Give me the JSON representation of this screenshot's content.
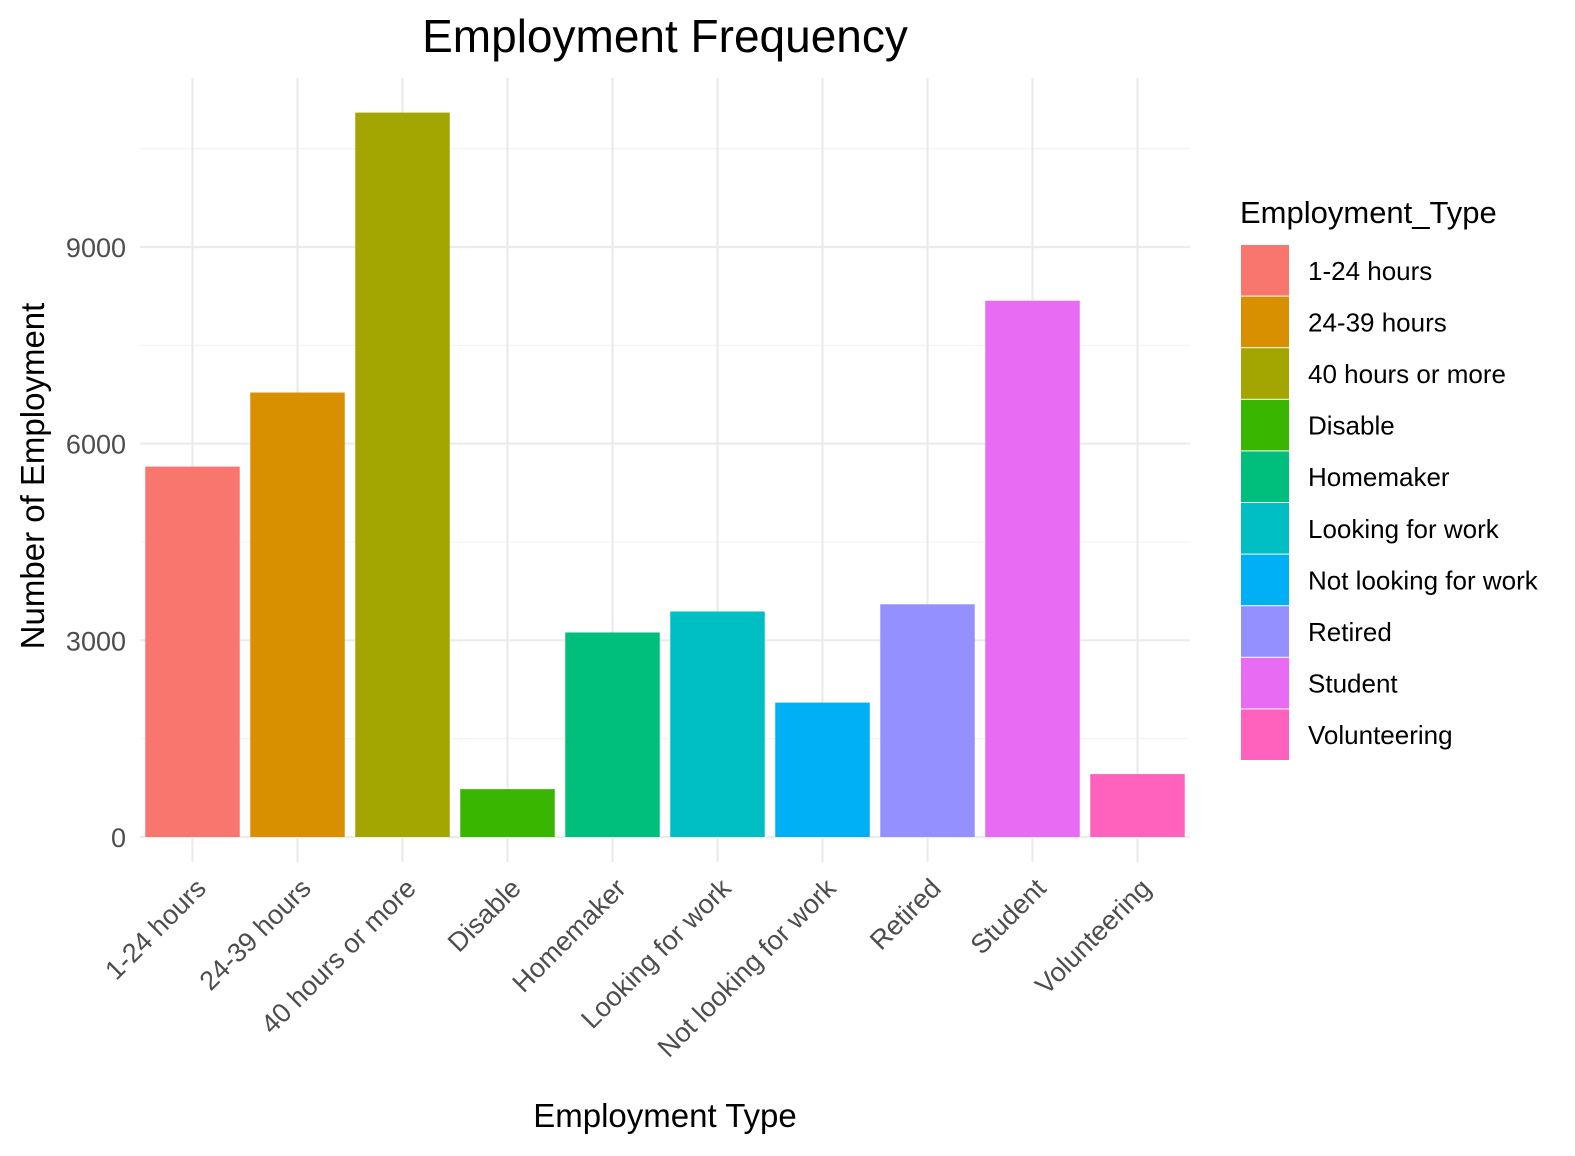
{
  "chart_data": {
    "type": "bar",
    "title": "Employment Frequency",
    "xlabel": "Employment Type",
    "ylabel": "Number of Employment",
    "categories": [
      "1-24 hours",
      "24-39 hours",
      "40 hours or more",
      "Disable",
      "Homemaker",
      "Looking for work",
      "Not looking for work",
      "Retired",
      "Student",
      "Volunteering"
    ],
    "values": [
      5650,
      6780,
      11050,
      730,
      3120,
      3440,
      2050,
      3550,
      8180,
      960
    ],
    "colors": [
      "#F8766D",
      "#D89000",
      "#A3A500",
      "#39B600",
      "#00BF7D",
      "#00BFC4",
      "#00B0F6",
      "#9590FF",
      "#E76BF3",
      "#FF62BC"
    ],
    "y_ticks": [
      0,
      3000,
      6000,
      9000
    ],
    "ylim": [
      0,
      11600
    ],
    "grid": true,
    "legend": {
      "title": "Employment_Type",
      "position": "right",
      "entries": [
        "1-24 hours",
        "24-39 hours",
        "40 hours or more",
        "Disable",
        "Homemaker",
        "Looking for work",
        "Not looking for work",
        "Retired",
        "Student",
        "Volunteering"
      ]
    }
  }
}
